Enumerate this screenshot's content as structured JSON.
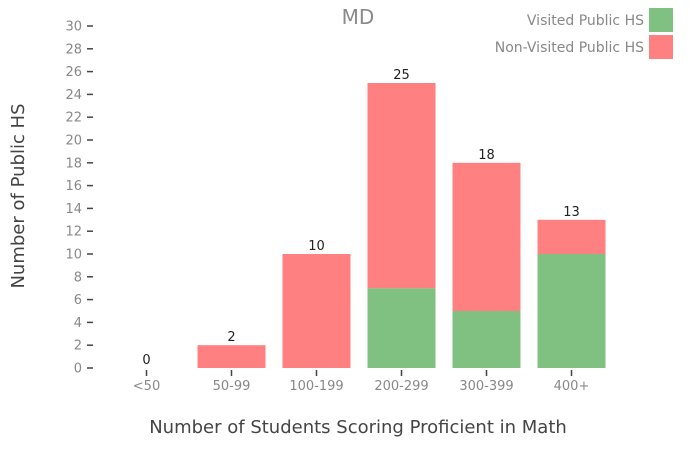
{
  "chart_data": {
    "type": "bar",
    "stacked": true,
    "title": "MD",
    "xlabel": "Number of Students Scoring Proficient in Math",
    "ylabel": "Number of Public HS",
    "categories": [
      "<50",
      "50-99",
      "100-199",
      "200-299",
      "300-399",
      "400+"
    ],
    "series": [
      {
        "name": "Visited Public HS",
        "color": "#80c080",
        "values": [
          0,
          0,
          0,
          7,
          5,
          10
        ]
      },
      {
        "name": "Non-Visited Public HS",
        "color": "#ff8080",
        "values": [
          0,
          2,
          10,
          18,
          13,
          3
        ]
      }
    ],
    "totals": [
      0,
      2,
      10,
      25,
      18,
      13
    ],
    "ylim": [
      0,
      30
    ],
    "yticks": [
      0,
      2,
      4,
      6,
      8,
      10,
      12,
      14,
      16,
      18,
      20,
      22,
      24,
      26,
      28,
      30
    ],
    "grid": false,
    "legend_position": "top-right"
  }
}
